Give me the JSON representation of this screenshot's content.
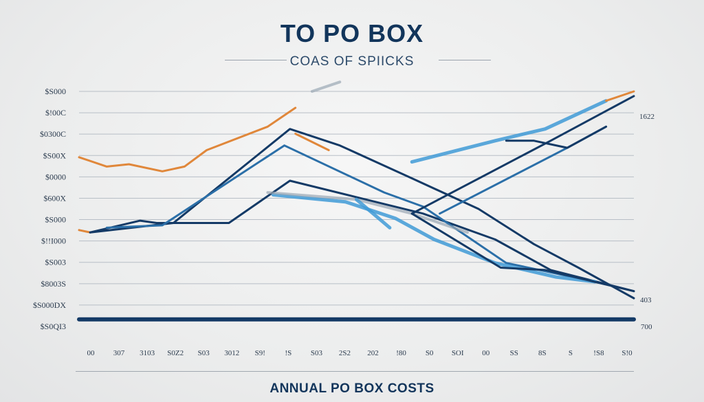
{
  "title": "TO PO BOX",
  "subtitle": "COAS OF SPIICKS",
  "bottom_label": "ANNUAL PO BOX COSTS",
  "chart_data": {
    "type": "line",
    "title": "TO PO BOX",
    "subtitle": "COAS OF SPIICKS",
    "xlabel": "ANNUAL PO BOX COSTS",
    "ylabel": "",
    "y_tick_labels": [
      "$S000",
      "$!00C",
      "$0300C",
      "$S00X",
      "$0000",
      "$600X",
      "$S000",
      "$!!I000",
      "$S003",
      "$8003S",
      "$S000DX",
      "$S0QI3"
    ],
    "x_tick_labels": [
      "00",
      "307",
      "3103",
      "S0Z2",
      "S03",
      "3012",
      "S9!",
      "!S",
      "S03",
      "2S2",
      "202",
      "!80",
      "S0",
      "SOI",
      "00",
      "SS",
      "8S",
      "S",
      "!S8",
      "S!0"
    ],
    "right_labels": [
      "1622",
      "403",
      "700"
    ],
    "x_range": [
      0,
      100
    ],
    "y_range": [
      0,
      100
    ],
    "grid": true,
    "legend": "none",
    "colors": {
      "navy": "#143a66",
      "mid_blue": "#2b6fa8",
      "light_blue": "#3f9ad6",
      "orange": "#e0873a",
      "gray": "#9aa6b4"
    },
    "series": [
      {
        "color": "orange",
        "points": [
          [
            0,
            72
          ],
          [
            5,
            68
          ],
          [
            9,
            69
          ],
          [
            15,
            66
          ],
          [
            19,
            68
          ],
          [
            23,
            75
          ],
          [
            34,
            85
          ],
          [
            39,
            93
          ]
        ]
      },
      {
        "color": "orange",
        "points": [
          [
            39,
            82
          ],
          [
            45,
            75
          ]
        ]
      },
      {
        "color": "orange",
        "points": [
          [
            0,
            41
          ],
          [
            2,
            40
          ]
        ]
      },
      {
        "color": "gray",
        "points": [
          [
            42,
            100
          ],
          [
            47,
            104
          ]
        ]
      },
      {
        "color": "navy",
        "points": [
          [
            2,
            40
          ],
          [
            11,
            45
          ],
          [
            14,
            44
          ],
          [
            27,
            44
          ],
          [
            38,
            62
          ],
          [
            50,
            55
          ],
          [
            62,
            48
          ],
          [
            75,
            37
          ],
          [
            85,
            24
          ],
          [
            100,
            15
          ]
        ]
      },
      {
        "color": "navy",
        "points": [
          [
            2,
            40
          ],
          [
            17,
            44
          ],
          [
            38,
            84
          ],
          [
            47,
            77
          ],
          [
            60,
            63
          ],
          [
            72,
            50
          ],
          [
            82,
            35
          ],
          [
            90,
            25
          ],
          [
            100,
            12
          ]
        ]
      },
      {
        "color": "mid_blue",
        "points": [
          [
            5,
            42
          ],
          [
            15,
            43
          ],
          [
            37,
            77
          ],
          [
            55,
            57
          ],
          [
            62,
            51
          ],
          [
            77,
            27
          ],
          [
            91,
            20
          ]
        ]
      },
      {
        "color": "light_blue",
        "points": [
          [
            35,
            56
          ],
          [
            48,
            53
          ],
          [
            57,
            46
          ],
          [
            64,
            37
          ],
          [
            75,
            27
          ],
          [
            86,
            21
          ],
          [
            93,
            19
          ]
        ]
      },
      {
        "color": "gray",
        "points": [
          [
            34,
            57
          ],
          [
            50,
            54
          ],
          [
            60,
            48
          ],
          [
            70,
            40
          ]
        ]
      },
      {
        "color": "light_blue",
        "points": [
          [
            50,
            54
          ],
          [
            56,
            42
          ]
        ]
      },
      {
        "color": "navy",
        "points": [
          [
            60,
            48
          ],
          [
            76,
            25
          ],
          [
            84,
            24
          ],
          [
            100,
            15
          ]
        ]
      },
      {
        "color": "navy",
        "points": [
          [
            60,
            48
          ],
          [
            85,
            79
          ],
          [
            100,
            98
          ]
        ]
      },
      {
        "color": "mid_blue",
        "points": [
          [
            65,
            48
          ],
          [
            88,
            76
          ],
          [
            95,
            85
          ]
        ]
      },
      {
        "color": "light_blue",
        "points": [
          [
            60,
            70
          ],
          [
            75,
            79
          ],
          [
            84,
            84
          ],
          [
            95,
            96
          ]
        ]
      },
      {
        "color": "orange",
        "points": [
          [
            95,
            96
          ],
          [
            100,
            100
          ]
        ]
      },
      {
        "color": "navy",
        "points": [
          [
            77,
            79
          ],
          [
            82,
            79
          ],
          [
            88,
            76
          ],
          [
            95,
            85
          ]
        ]
      },
      {
        "color": "navy",
        "points": [
          [
            0,
            3
          ],
          [
            100,
            3
          ]
        ],
        "width": 6
      }
    ]
  }
}
